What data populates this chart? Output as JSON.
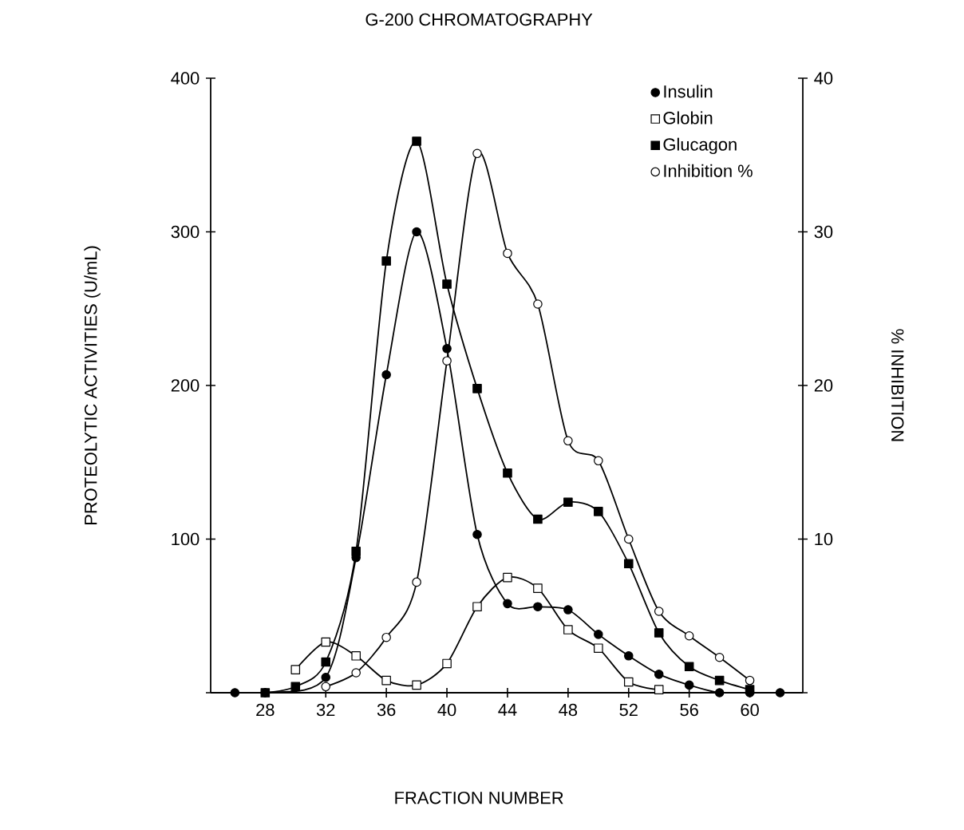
{
  "chart_data": {
    "type": "line",
    "title": "G-200 CHROMATOGRAPHY",
    "xlabel": "FRACTION NUMBER",
    "ylabel": "PROTEOLYTIC ACTIVITIES  (U/mL)",
    "y2label": "% INHIBITION",
    "xlim": [
      24.4,
      63.5
    ],
    "xticks": [
      28,
      32,
      36,
      40,
      44,
      48,
      52,
      56,
      60
    ],
    "ylim": [
      0,
      400
    ],
    "yticks": [
      {
        "value": 0,
        "label": null
      },
      100,
      200,
      300,
      400
    ],
    "y2lim": [
      0,
      40
    ],
    "y2ticks": [
      {
        "value": 0,
        "label": null
      },
      10,
      20,
      30,
      40
    ],
    "legend": "top right",
    "grid": false,
    "line_style": "solid",
    "series": [
      {
        "name": "Insulin",
        "color": "#000000",
        "marker": "circle",
        "x": [
          26,
          28,
          30,
          32,
          34,
          36,
          38,
          40,
          42,
          44,
          46,
          48,
          50,
          52,
          54,
          56,
          58,
          60,
          62
        ],
        "values": [
          0,
          0,
          null,
          10,
          88,
          207,
          300,
          224,
          103,
          58,
          56,
          54,
          38,
          24,
          12,
          5,
          0,
          0,
          0
        ]
      },
      {
        "name": "Globin",
        "color": "#000000",
        "marker": "square",
        "x": [
          30,
          32,
          34,
          36,
          38,
          40,
          42,
          44,
          46,
          48,
          50,
          52,
          54
        ],
        "values": [
          15,
          33,
          24,
          8,
          5,
          19,
          56,
          75,
          68,
          41,
          29,
          7,
          2
        ]
      },
      {
        "name": "Glucagon",
        "color": "#000000",
        "marker": "square",
        "x": [
          28,
          30,
          32,
          34,
          36,
          38,
          40,
          42,
          44,
          46,
          48,
          50,
          52,
          54,
          56,
          58,
          60
        ],
        "values": [
          0,
          4,
          20,
          92,
          281,
          359,
          266,
          198,
          143,
          113,
          124,
          118,
          84,
          39,
          17,
          8,
          2
        ]
      },
      {
        "name": "Inhibition %",
        "color": "#000000",
        "marker": "circle",
        "axis": "y2",
        "x": [
          32,
          34,
          36,
          38,
          40,
          42,
          44,
          46,
          48,
          50,
          52,
          54,
          56,
          58,
          60
        ],
        "values": [
          0.4,
          1.3,
          3.6,
          7.2,
          21.6,
          35.1,
          28.6,
          25.3,
          16.4,
          15.1,
          10.0,
          5.3,
          3.7,
          2.3,
          0.8
        ]
      }
    ]
  }
}
